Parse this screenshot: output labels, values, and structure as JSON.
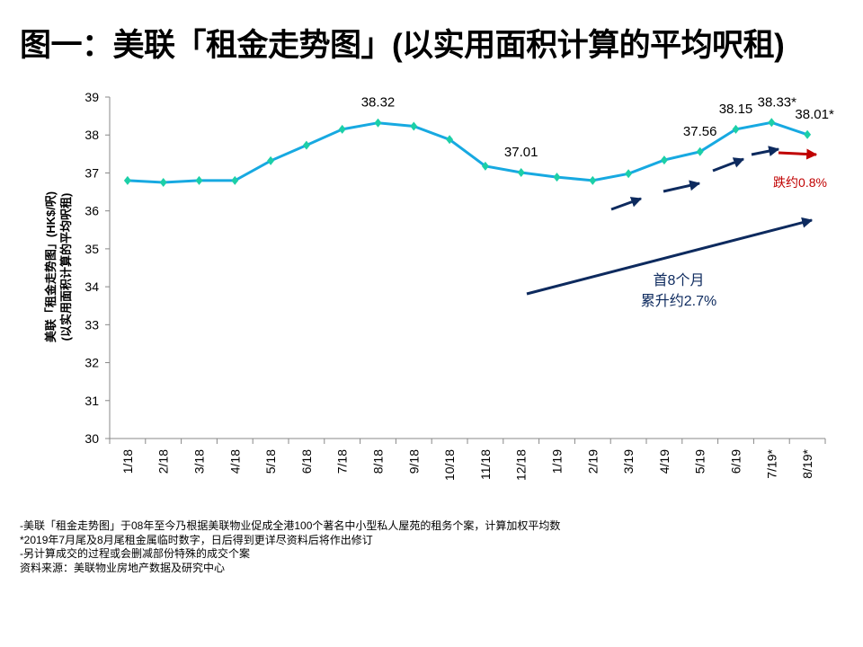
{
  "title": "图一：美联「租金走势图」(以实用面积计算的平均呎租)",
  "chart_data": {
    "type": "line",
    "title": "图一：美联「租金走势图」(以实用面积计算的平均呎租)",
    "ylabel": [
      "美联「租金走势图」(HK$/呎)",
      "(以实用面积计算的平均呎租)"
    ],
    "xlabel": "",
    "ylim": [
      30,
      39
    ],
    "yticks": [
      30,
      31,
      32,
      33,
      34,
      35,
      36,
      37,
      38,
      39
    ],
    "categories": [
      "1/18",
      "2/18",
      "3/18",
      "4/18",
      "5/18",
      "6/18",
      "7/18",
      "8/18",
      "9/18",
      "10/18",
      "11/18",
      "12/18",
      "1/19",
      "2/19",
      "3/19",
      "4/19",
      "5/19",
      "6/19",
      "7/19*",
      "8/19*"
    ],
    "values": [
      36.8,
      36.75,
      36.8,
      36.8,
      37.32,
      37.73,
      38.15,
      38.32,
      38.23,
      37.88,
      37.18,
      37.01,
      36.89,
      36.8,
      36.98,
      37.34,
      37.56,
      38.15,
      38.33,
      38.01
    ],
    "data_labels": {
      "7": "38.32",
      "11": "37.01",
      "16": "37.56",
      "17": "38.15",
      "18": "38.33*",
      "19": "38.01*"
    },
    "annotations": {
      "drop": "跌约0.8%",
      "rise_line1": "首8个月",
      "rise_line2": "累升约2.7%"
    },
    "colors": {
      "line": "#17a9e1",
      "marker": "#1ccfa8",
      "arrow": "#0d2a5e",
      "drop": "#c00000"
    },
    "grid": false
  },
  "notes": [
    "-美联「租金走势图」于08年至今乃根据美联物业促成全港100个著名中小型私人屋苑的租务个案，计算加权平均数",
    "*2019年7月尾及8月尾租金属临时数字，日后得到更详尽资料后将作出修订",
    "-另计算成交的过程或会删减部份特殊的成交个案",
    "资料来源：美联物业房地产数据及研究中心"
  ]
}
